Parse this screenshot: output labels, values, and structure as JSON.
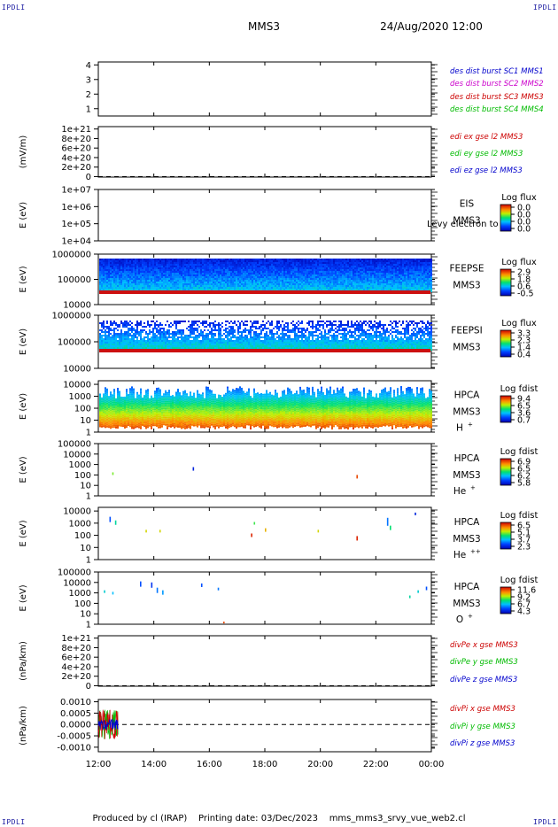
{
  "header": {
    "left_corner": "IPDLI",
    "right_corner": "IPDLI",
    "title": "MMS3",
    "datetime": "24/Aug/2020 12:00"
  },
  "footer": {
    "text": "Produced by cl (IRAP)    Printing date: 03/Dec/2023    mms_mms3_srvy_vue_web2.cl",
    "left_corner": "IPDLI",
    "right_corner": "IPDLI"
  },
  "colors": {
    "blue": "#0000cc",
    "magenta": "#cc00cc",
    "red": "#cc0000",
    "green": "#00bb00"
  },
  "chart_data": {
    "type": "multi-panel time series / spectrogram",
    "time_axis": {
      "ticks": [
        "12:00",
        "14:00",
        "16:00",
        "18:00",
        "20:00",
        "22:00",
        "00:00"
      ],
      "range_hours": [
        12,
        24
      ]
    },
    "panels": [
      {
        "id": "des",
        "type": "line",
        "yticks": [
          "4",
          "3",
          "2",
          "1"
        ],
        "ylim": [
          0.5,
          4.2
        ],
        "ylabel": "",
        "legend": [
          {
            "text": "des dist burst SC1 MMS1",
            "color": "#0000cc"
          },
          {
            "text": "des dist burst SC2 MMS2",
            "color": "#cc00cc"
          },
          {
            "text": "des dist burst SC3 MMS3",
            "color": "#cc0000"
          },
          {
            "text": "des dist burst SC4 MMS4",
            "color": "#00bb00"
          }
        ]
      },
      {
        "id": "edi",
        "type": "line",
        "yticks": [
          "1e+21",
          "8e+20",
          "6e+20",
          "4e+20",
          "2e+20",
          "0"
        ],
        "ylim": [
          -1e+19,
          1.05e+21
        ],
        "ylabel": "(mV/m)",
        "zero_line": true,
        "legend": [
          {
            "text": "edi ex gse l2 MMS3",
            "color": "#cc0000"
          },
          {
            "text": "edi ey gse l2 MMS3",
            "color": "#00bb00"
          },
          {
            "text": "edi ez gse l2 MMS3",
            "color": "#0000cc"
          }
        ]
      },
      {
        "id": "eis",
        "type": "heatmap",
        "yscale": "log",
        "yticks": [
          "1e+07",
          "1e+06",
          "1e+05",
          "1e+04"
        ],
        "ylim": [
          10000.0,
          10000000.0
        ],
        "ylabel": "E (eV)",
        "instrument": "EIS",
        "overlay_text": "Levy electron to",
        "sc": "MMS3",
        "cbar_title": "Log flux",
        "cbar_ticks": [
          "0.0",
          "0.0",
          "0.0",
          "0.0"
        ],
        "data": "empty"
      },
      {
        "id": "feepse",
        "type": "heatmap",
        "yscale": "log",
        "yticks": [
          "1000000",
          "100000",
          "10000"
        ],
        "ylim": [
          10000.0,
          1000000.0
        ],
        "ylabel": "E (eV)",
        "instrument": "FEEPSE",
        "sc": "MMS3",
        "cbar_title": "Log flux",
        "cbar_ticks": [
          "2.9",
          "1.8",
          "0.6",
          "-0.5"
        ]
      },
      {
        "id": "feepsi",
        "type": "heatmap",
        "yscale": "log",
        "yticks": [
          "1000000",
          "100000",
          "10000"
        ],
        "ylim": [
          10000.0,
          1000000.0
        ],
        "ylabel": "E (eV)",
        "instrument": "FEEPSI",
        "sc": "MMS3",
        "cbar_title": "Log flux",
        "cbar_ticks": [
          "3.3",
          "2.3",
          "1.4",
          "0.4"
        ]
      },
      {
        "id": "hpca_h",
        "type": "heatmap",
        "yscale": "log",
        "yticks": [
          "10000",
          "1000",
          "100",
          "10",
          "1"
        ],
        "ylim": [
          1,
          20000.0
        ],
        "ylabel": "E (eV)",
        "instrument": "HPCA",
        "sc": "MMS3",
        "species": "H",
        "charge": "+",
        "cbar_title": "Log fdist",
        "cbar_ticks": [
          "9.4",
          "6.5",
          "3.6",
          "0.7"
        ]
      },
      {
        "id": "hpca_he",
        "type": "heatmap",
        "yscale": "log",
        "yticks": [
          "100000",
          "10000",
          "1000",
          "100",
          "10",
          "1"
        ],
        "ylim": [
          1,
          100000.0
        ],
        "ylabel": "E (eV)",
        "instrument": "HPCA",
        "sc": "MMS3",
        "species": "He",
        "charge": "+",
        "cbar_title": "Log fdist",
        "cbar_ticks": [
          "6.9",
          "6.5",
          "6.2",
          "5.8"
        ]
      },
      {
        "id": "hpca_hepp",
        "type": "heatmap",
        "yscale": "log",
        "yticks": [
          "10000",
          "1000",
          "100",
          "10",
          "1"
        ],
        "ylim": [
          1,
          20000.0
        ],
        "ylabel": "E (eV)",
        "instrument": "HPCA",
        "sc": "MMS3",
        "species": "He",
        "charge": "++",
        "cbar_title": "Log fdist",
        "cbar_ticks": [
          "6.5",
          "5.1",
          "3.7",
          "2.3"
        ]
      },
      {
        "id": "hpca_o",
        "type": "heatmap",
        "yscale": "log",
        "yticks": [
          "100000",
          "10000",
          "1000",
          "100",
          "10",
          "1"
        ],
        "ylim": [
          1,
          100000.0
        ],
        "ylabel": "E (eV)",
        "instrument": "HPCA",
        "sc": "MMS3",
        "species": "O",
        "charge": "+",
        "cbar_title": "Log fdist",
        "cbar_ticks": [
          "11.6",
          "9.2",
          "6.7",
          "4.3"
        ]
      },
      {
        "id": "divpe",
        "type": "line",
        "yticks": [
          "1e+21",
          "8e+20",
          "6e+20",
          "4e+20",
          "2e+20",
          "0"
        ],
        "ylim": [
          -1e+19,
          1.05e+21
        ],
        "ylabel": "(nPa/km)",
        "zero_line": true,
        "legend": [
          {
            "text": "divPe x gse MMS3",
            "color": "#cc0000"
          },
          {
            "text": "divPe y gse MMS3",
            "color": "#00bb00"
          },
          {
            "text": "divPe z gse MMS3",
            "color": "#0000cc"
          }
        ]
      },
      {
        "id": "divpi",
        "type": "line",
        "yticks": [
          "0.0010",
          "0.0005",
          "0.0000",
          "-0.0005",
          "-0.0010"
        ],
        "ylim": [
          -0.0012,
          0.0011
        ],
        "ylabel": "(nPa/km)",
        "zero_line": true,
        "data_note": "brief burst of x/y/z data between ~12:00 and ~12:45, amplitude about ±0.0009",
        "legend": [
          {
            "text": "divPi x gse MMS3",
            "color": "#cc0000"
          },
          {
            "text": "divPi y gse MMS3",
            "color": "#00bb00"
          },
          {
            "text": "divPi z gse MMS3",
            "color": "#0000cc"
          }
        ]
      }
    ]
  }
}
